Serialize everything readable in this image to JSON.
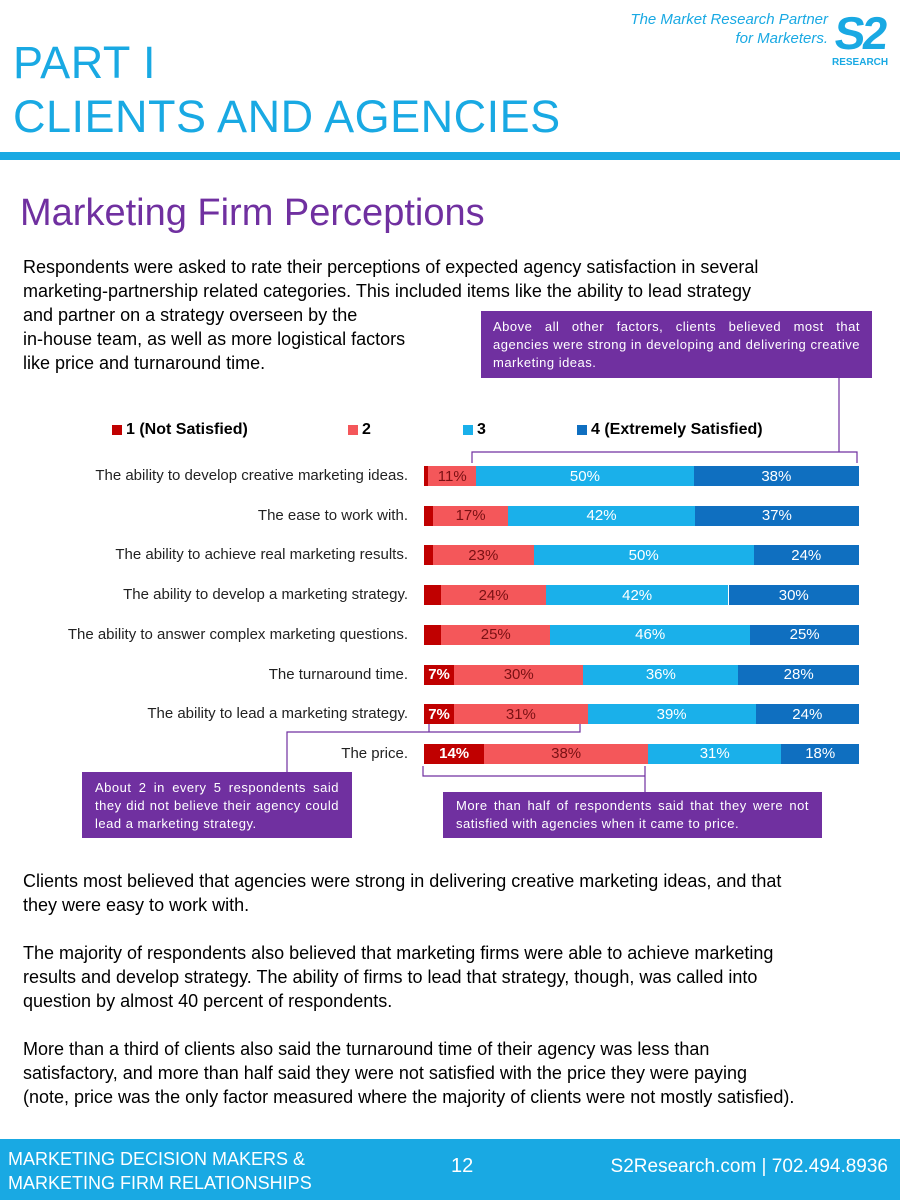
{
  "header": {
    "part_line1": "PART I",
    "part_line2": "CLIENTS AND AGENCIES",
    "tagline_line1": "The Market Research Partner",
    "tagline_line2": "for Marketers.",
    "logo_mark": "S2",
    "logo_word": "RESEARCH",
    "accent_color": "#19a9e3"
  },
  "section_title": "Marketing Firm Perceptions",
  "intro_lines": [
    "Respondents were asked to rate their perceptions of expected agency satisfaction in several",
    "marketing-partnership related categories. This included items like the ability to lead strategy",
    "and partner on a strategy overseen by the",
    "in-house team, as well as more logistical factors",
    "like price and turnaround time."
  ],
  "callouts": {
    "top": "Above all other factors, clients believed most that agencies were strong in developing and delivering creative marketing ideas.",
    "left": "About 2 in every 5 respondents said they did not believe their agency could lead a marketing strategy.",
    "right": "More than half of respondents said that they were not satisfied with agencies when it came to price.",
    "color": "#7030a0"
  },
  "chart_data": {
    "type": "bar",
    "orientation": "horizontal",
    "stacked": true,
    "normalized_percent": true,
    "categories": [
      "The ability to develop creative marketing ideas.",
      "The ease to work with.",
      "The ability to achieve real marketing results.",
      "The ability to develop a marketing strategy.",
      "The ability to answer complex marketing questions.",
      "The turnaround time.",
      "The ability to lead a marketing strategy.",
      "The price."
    ],
    "series": [
      {
        "name": "1 (Not Satisfied)",
        "color": "#c00000",
        "values": [
          1,
          2,
          2,
          4,
          4,
          7,
          7,
          14
        ],
        "labels": [
          "",
          "",
          "",
          "",
          "",
          "7%",
          "7%",
          "14%"
        ]
      },
      {
        "name": "2",
        "color": "#f4575a",
        "values": [
          11,
          17,
          23,
          24,
          25,
          30,
          31,
          38
        ],
        "labels": [
          "11%",
          "17%",
          "23%",
          "24%",
          "25%",
          "30%",
          "31%",
          "38%"
        ]
      },
      {
        "name": "3",
        "color": "#1ab0ea",
        "values": [
          50,
          42,
          50,
          42,
          46,
          36,
          39,
          31
        ],
        "labels": [
          "50%",
          "42%",
          "50%",
          "42%",
          "46%",
          "36%",
          "39%",
          "31%"
        ]
      },
      {
        "name": "4 (Extremely Satisfied)",
        "color": "#0f6fc0",
        "values": [
          38,
          37,
          24,
          30,
          25,
          28,
          24,
          18
        ],
        "labels": [
          "38%",
          "37%",
          "24%",
          "30%",
          "25%",
          "28%",
          "24%",
          "18%"
        ]
      }
    ],
    "legend_position": "top",
    "grid": false,
    "title": "",
    "xlabel": "",
    "ylabel": ""
  },
  "body_lines": [
    "Clients most believed that agencies were strong in delivering creative marketing ideas, and that",
    "they were easy to work with.",
    "The majority of respondents also believed that marketing firms were able to achieve marketing",
    "results and develop strategy. The ability of firms to lead that strategy, though, was called into",
    "question by almost 40 percent of respondents.",
    "More than a third of clients also said the turnaround time of their agency was less than",
    "satisfactory, and more than half said they were not satisfied with the price they were paying",
    "(note, price was the only factor measured where the majority of clients were not mostly satisfied)."
  ],
  "footer": {
    "left_line1": "MARKETING DECISION MAKERS &",
    "left_line2": "MARKETING FIRM RELATIONSHIPS",
    "page_number": "12",
    "contact": "S2Research.com | 702.494.8936"
  }
}
